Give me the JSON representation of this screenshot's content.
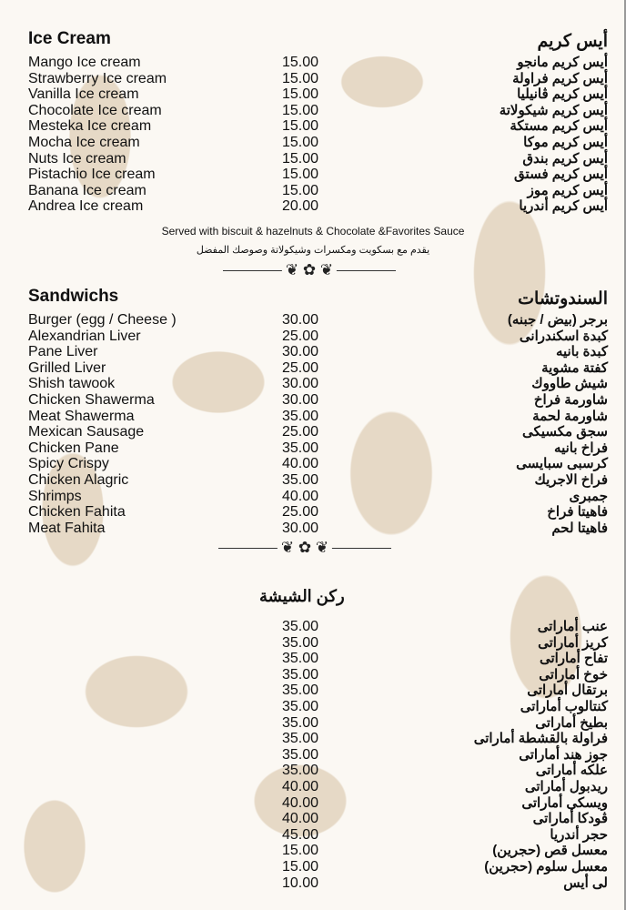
{
  "ice_cream": {
    "title_en": "Ice Cream",
    "title_ar": "أيس كريم",
    "items": [
      {
        "en": "Mango Ice cream",
        "price": "15.00",
        "ar": "أيس كريم مانجو"
      },
      {
        "en": "Strawberry Ice cream",
        "price": "15.00",
        "ar": "أيس كريم فراولة"
      },
      {
        "en": "Vanilla Ice cream",
        "price": "15.00",
        "ar": "أيس كريم ڤانيليا"
      },
      {
        "en": "Chocolate Ice cream",
        "price": "15.00",
        "ar": "أيس كريم شيكولاتة"
      },
      {
        "en": "Mesteka Ice cream",
        "price": "15.00",
        "ar": "أيس كريم مستكة"
      },
      {
        "en": "Mocha Ice cream",
        "price": "15.00",
        "ar": "أيس كريم موكا"
      },
      {
        "en": "Nuts Ice cream",
        "price": "15.00",
        "ar": "أيس كريم بندق"
      },
      {
        "en": "Pistachio Ice cream",
        "price": "15.00",
        "ar": "أيس كريم فستق"
      },
      {
        "en": "Banana Ice cream",
        "price": "15.00",
        "ar": "أيس كريم موز"
      },
      {
        "en": "Andrea Ice cream",
        "price": "20.00",
        "ar": "أيس كريم أندريا"
      }
    ],
    "note_en": "Served with biscuit & hazelnuts & Chocolate &Favorites Sauce",
    "note_ar": "يقدم مع بسكويت ومكسرات وشيكولاتة وصوصك المفضل"
  },
  "sandwiches": {
    "title_en": "Sandwichs",
    "title_ar": "السندوتشات",
    "items": [
      {
        "en": "Burger (egg / Cheese )",
        "price": "30.00",
        "ar": "برجر (بيض / جبنه)"
      },
      {
        "en": "Alexandrian Liver",
        "price": "25.00",
        "ar": "كبدة اسكندرانى"
      },
      {
        "en": "Pane Liver",
        "price": "30.00",
        "ar": "كبدة بانيه"
      },
      {
        "en": "Grilled Liver",
        "price": "25.00",
        "ar": "كفتة مشوية"
      },
      {
        "en": "Shish tawook",
        "price": "30.00",
        "ar": "شيش طاووك"
      },
      {
        "en": "Chicken Shawerma",
        "price": "30.00",
        "ar": "شاورمة فراخ"
      },
      {
        "en": "Meat Shawerma",
        "price": "35.00",
        "ar": "شاورمة لحمة"
      },
      {
        "en": "Mexican Sausage",
        "price": "25.00",
        "ar": "سجق مكسيكى"
      },
      {
        "en": "Chicken Pane",
        "price": "35.00",
        "ar": "فراخ بانيه"
      },
      {
        "en": "Spicy Crispy",
        "price": "40.00",
        "ar": "كرسبى سبايسى"
      },
      {
        "en": "Chicken Alagric",
        "price": "35.00",
        "ar": "فراخ الاجريك"
      },
      {
        "en": "Shrimps",
        "price": "40.00",
        "ar": "جمبرى"
      },
      {
        "en": "Chicken Fahita",
        "price": "25.00",
        "ar": "فاهيتا فراخ"
      },
      {
        "en": "Meat Fahita",
        "price": "30.00",
        "ar": "فاهيتا لحم"
      }
    ]
  },
  "shisha": {
    "title_ar": "ركن الشيشة",
    "items": [
      {
        "price": "35.00",
        "ar": "عنب أماراتى"
      },
      {
        "price": "35.00",
        "ar": "كريز أماراتى"
      },
      {
        "price": "35.00",
        "ar": "تفاح أماراتى"
      },
      {
        "price": "35.00",
        "ar": "خوخ أماراتى"
      },
      {
        "price": "35.00",
        "ar": "برتقال أماراتى"
      },
      {
        "price": "35.00",
        "ar": "كنتالوب أماراتى"
      },
      {
        "price": "35.00",
        "ar": "بطيخ أماراتى"
      },
      {
        "price": "35.00",
        "ar": "فراولة بالقشطة أماراتى"
      },
      {
        "price": "35.00",
        "ar": "جوز هند أماراتى"
      },
      {
        "price": "35.00",
        "ar": "علكه أماراتى"
      },
      {
        "price": "40.00",
        "ar": "ريدبول أماراتى"
      },
      {
        "price": "40.00",
        "ar": "ويسكى أماراتى"
      },
      {
        "price": "40.00",
        "ar": "ڤودكا أماراتى"
      },
      {
        "price": "45.00",
        "ar": "حجر أندريا"
      },
      {
        "price": "15.00",
        "ar": "معسل قص (حجرين)"
      },
      {
        "price": "15.00",
        "ar": "معسل سلوم (حجرين)"
      },
      {
        "price": "10.00",
        "ar": "لى أيس"
      }
    ]
  },
  "ornament": "❦ ✿ ❦"
}
